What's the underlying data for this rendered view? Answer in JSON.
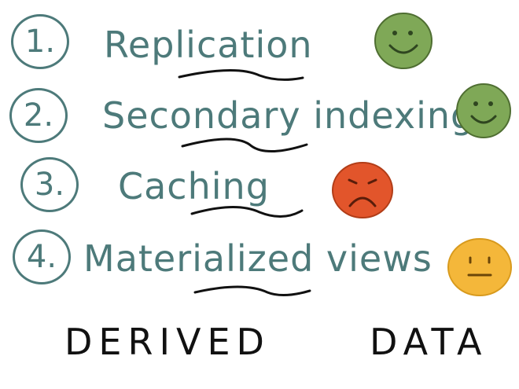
{
  "items": [
    {
      "number": "1.",
      "label": "Replication",
      "mood": "happy",
      "face_color": "#7fa857",
      "face_stroke": "#4f6e32"
    },
    {
      "number": "2.",
      "label": "Secondary indexing",
      "mood": "happy",
      "face_color": "#7fa857",
      "face_stroke": "#4f6e32"
    },
    {
      "number": "3.",
      "label": "Caching",
      "mood": "sad",
      "face_color": "#e2552b",
      "face_stroke": "#b13d18"
    },
    {
      "number": "4.",
      "label": "Materialized views",
      "mood": "neutral",
      "face_color": "#f4b73a",
      "face_stroke": "#d89a1d"
    }
  ],
  "footer": {
    "left": "DERIVED",
    "right": "DATA"
  },
  "colors": {
    "ink_teal": "#4d7a7a",
    "ink_black": "#111111"
  }
}
